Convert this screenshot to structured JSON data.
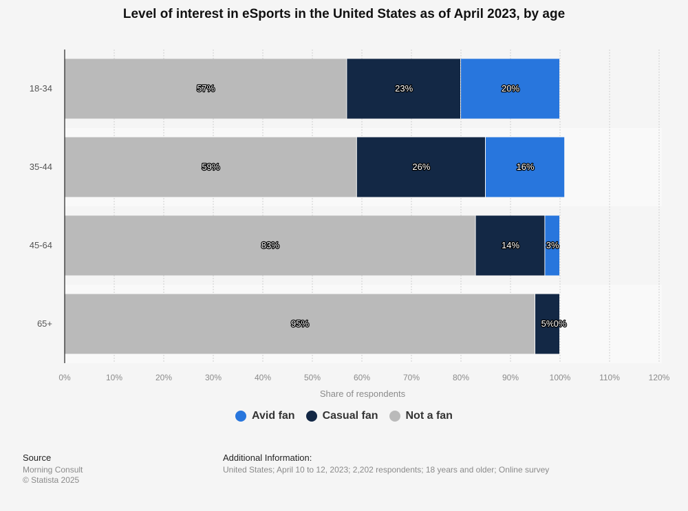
{
  "chart_data": {
    "type": "bar",
    "orientation": "horizontal",
    "stacked": true,
    "title": "Level of interest in eSports in the United States as of April 2023, by age",
    "xlabel": "Share of respondents",
    "ylabel": "",
    "xlim": [
      0,
      120
    ],
    "x_ticks": [
      "0%",
      "10%",
      "20%",
      "30%",
      "40%",
      "50%",
      "60%",
      "70%",
      "80%",
      "90%",
      "100%",
      "110%",
      "120%"
    ],
    "grid": true,
    "legend_position": "bottom",
    "categories": [
      "18-34",
      "35-44",
      "45-64",
      "65+"
    ],
    "series": [
      {
        "name": "Not a fan",
        "color": "#bababa",
        "values": [
          57,
          59,
          83,
          95
        ],
        "labels": [
          "57%",
          "59%",
          "83%",
          "95%"
        ]
      },
      {
        "name": "Casual fan",
        "color": "#132845",
        "values": [
          23,
          26,
          14,
          5
        ],
        "labels": [
          "23%",
          "26%",
          "14%",
          "5%"
        ]
      },
      {
        "name": "Avid fan",
        "color": "#2876dd",
        "values": [
          20,
          16,
          3,
          0
        ],
        "labels": [
          "20%",
          "16%",
          "3%",
          "0%"
        ]
      }
    ]
  },
  "legend": [
    {
      "name": "Avid fan",
      "color": "#2876dd"
    },
    {
      "name": "Casual fan",
      "color": "#132845"
    },
    {
      "name": "Not a fan",
      "color": "#bababa"
    }
  ],
  "footer": {
    "source_heading": "Source",
    "source_name": "Morning Consult",
    "copyright": "© Statista 2025",
    "info_heading": "Additional Information:",
    "info_text": "United States; April 10 to 12, 2023; 2,202 respondents; 18 years and older; Online survey"
  }
}
